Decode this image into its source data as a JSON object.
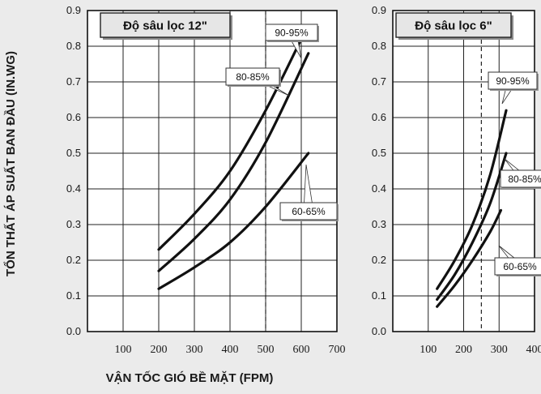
{
  "xlabel": "VẬN TỐC GIÓ BỀ MẶT (FPM)",
  "ylabel": "TỔN THẤT ÁP SUẤT BAN ĐẦU (IN.WG)",
  "chart_data": [
    {
      "type": "line",
      "title": "Độ sâu lọc 12\"",
      "xlim": [
        0,
        700
      ],
      "ylim": [
        0,
        0.9
      ],
      "x_ticks": [
        "100",
        "200",
        "300",
        "400",
        "500",
        "600",
        "700"
      ],
      "y_ticks": [
        "0.0",
        "0.1",
        "0.2",
        "0.3",
        "0.4",
        "0.5",
        "0.6",
        "0.7",
        "0.8",
        "0.9"
      ],
      "grid": true,
      "reference_line_x": 500,
      "series": [
        {
          "name": "90-95%",
          "x": [
            200,
            300,
            400,
            500,
            600
          ],
          "y": [
            0.23,
            0.33,
            0.45,
            0.62,
            0.82
          ]
        },
        {
          "name": "80-85%",
          "x": [
            200,
            300,
            400,
            500,
            620
          ],
          "y": [
            0.17,
            0.26,
            0.37,
            0.53,
            0.78
          ]
        },
        {
          "name": "60-65%",
          "x": [
            200,
            300,
            400,
            500,
            620
          ],
          "y": [
            0.12,
            0.18,
            0.25,
            0.35,
            0.5
          ]
        }
      ]
    },
    {
      "type": "line",
      "title": "Độ sâu lọc 6\"",
      "xlim": [
        0,
        400
      ],
      "ylim": [
        0,
        0.9
      ],
      "x_ticks": [
        "100",
        "200",
        "300",
        "400"
      ],
      "y_ticks": [
        "0.0",
        "0.1",
        "0.2",
        "0.3",
        "0.4",
        "0.5",
        "0.6",
        "0.7",
        "0.8",
        "0.9"
      ],
      "grid": true,
      "reference_line_x": 250,
      "series": [
        {
          "name": "90-95%",
          "x": [
            125,
            175,
            225,
            275,
            320
          ],
          "y": [
            0.12,
            0.2,
            0.3,
            0.44,
            0.62
          ]
        },
        {
          "name": "80-85%",
          "x": [
            125,
            175,
            225,
            275,
            320
          ],
          "y": [
            0.09,
            0.16,
            0.25,
            0.36,
            0.5
          ]
        },
        {
          "name": "60-65%",
          "x": [
            125,
            175,
            225,
            275,
            305
          ],
          "y": [
            0.07,
            0.13,
            0.2,
            0.28,
            0.34
          ]
        }
      ]
    }
  ]
}
